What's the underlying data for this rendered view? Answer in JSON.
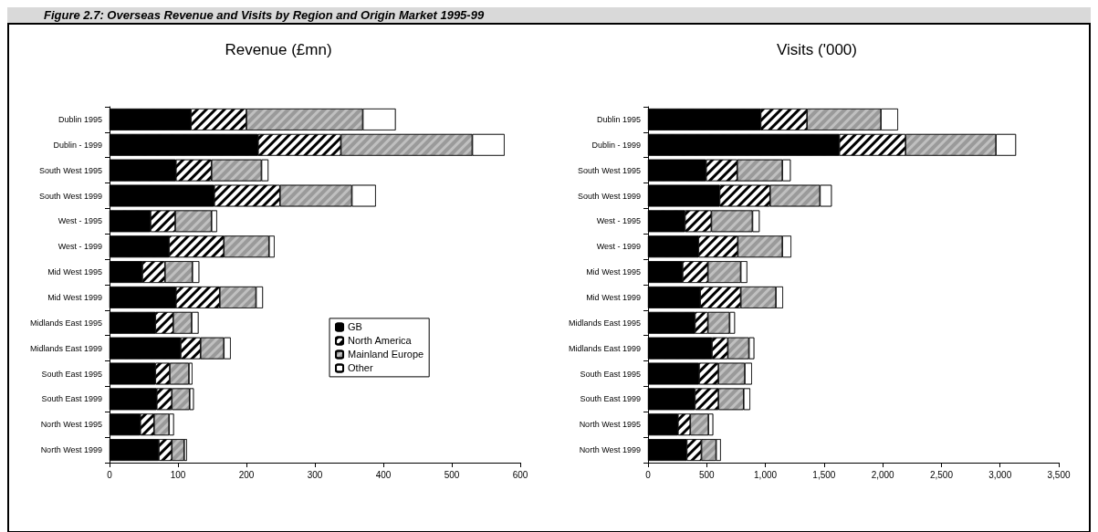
{
  "chart_data": [
    {
      "type": "bar",
      "orientation": "horizontal",
      "stacked": true,
      "title": "Revenue (£mn)",
      "annotations": [
        "Figure 2.7: Overseas Revenue and Visits by Region and Origin Market 1995-99"
      ],
      "legend": "right",
      "grid": false,
      "categories": [
        "Dublin 1995",
        "Dublin - 1999",
        "South West 1995",
        "South West 1999",
        "West - 1995",
        "West - 1999",
        "Mid West 1995",
        "Mid West 1999",
        "Midlands East 1995",
        "Midlands East 1999",
        "South East 1995",
        "South East 1999",
        "North West 1995",
        "North West 1999"
      ],
      "xlim": [
        0,
        600
      ],
      "xticks": [
        0,
        100,
        200,
        300,
        400,
        500,
        600
      ],
      "series": [
        {
          "name": "GB",
          "color": "#000000",
          "values": [
            119,
            217,
            97,
            153,
            60,
            87,
            48,
            97,
            67,
            104,
            67,
            69,
            45,
            72
          ]
        },
        {
          "name": "North America",
          "color": "#ffffff",
          "values": [
            81,
            121,
            52,
            96,
            36,
            80,
            33,
            64,
            26,
            29,
            21,
            22,
            20,
            19
          ]
        },
        {
          "name": "Mainland Europe",
          "color": "#c0c0c0",
          "values": [
            170,
            192,
            73,
            105,
            53,
            66,
            40,
            53,
            27,
            34,
            28,
            26,
            22,
            18
          ]
        },
        {
          "name": "Other",
          "color": "#ffffff",
          "values": [
            48,
            47,
            10,
            35,
            8,
            8,
            10,
            10,
            10,
            10,
            5,
            6,
            7,
            4
          ]
        }
      ]
    },
    {
      "type": "bar",
      "orientation": "horizontal",
      "stacked": true,
      "title": "Visits ('000)",
      "grid": false,
      "categories": [
        "Dublin 1995",
        "Dublin - 1999",
        "South West 1995",
        "South West 1999",
        "West - 1995",
        "West - 1999",
        "Mid West 1995",
        "Mid West 1999",
        "Midlands East 1995",
        "Midlands East 1999",
        "South East 1995",
        "South East 1999",
        "North West 1995",
        "North West 1999"
      ],
      "xlim": [
        0,
        3500
      ],
      "xticks": [
        0,
        {
          "value": 500,
          "label": "500"
        },
        {
          "value": 1000,
          "label": "1,000"
        },
        {
          "value": 1500,
          "label": "1,500"
        },
        {
          "value": 2000,
          "label": "2,000"
        },
        {
          "value": 2500,
          "label": "2,500"
        },
        {
          "value": 3000,
          "label": "3,000"
        },
        {
          "value": 3500,
          "label": "3,500"
        }
      ],
      "series": [
        {
          "name": "GB",
          "color": "#000000",
          "values": [
            960,
            1630,
            495,
            610,
            315,
            430,
            295,
            445,
            400,
            545,
            435,
            400,
            255,
            330
          ]
        },
        {
          "name": "North America",
          "color": "#ffffff",
          "values": [
            395,
            565,
            265,
            430,
            225,
            335,
            215,
            345,
            110,
            135,
            165,
            200,
            105,
            125
          ]
        },
        {
          "name": "Mainland Europe",
          "color": "#c0c0c0",
          "values": [
            630,
            770,
            385,
            425,
            350,
            380,
            280,
            300,
            185,
            180,
            225,
            215,
            155,
            125
          ]
        },
        {
          "name": "Other",
          "color": "#ffffff",
          "values": [
            145,
            170,
            70,
            100,
            60,
            75,
            55,
            60,
            45,
            45,
            60,
            55,
            40,
            40
          ]
        }
      ]
    }
  ]
}
